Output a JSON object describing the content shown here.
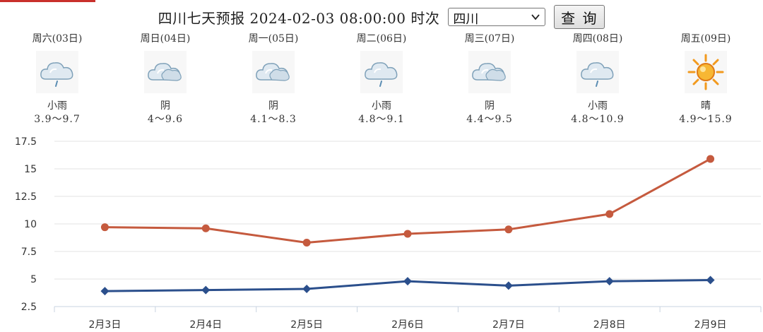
{
  "header": {
    "title": "四川七天预报 2024-02-03 08:00:00 时次",
    "region_select": {
      "selected": "四川"
    },
    "query_button": "查 询"
  },
  "forecast": {
    "days": [
      {
        "label": "周六(03日)",
        "icon": "cloud-rain-icon",
        "condition": "小雨",
        "range": "3.9～9.7"
      },
      {
        "label": "周日(04日)",
        "icon": "cloud-overcast-icon",
        "condition": "阴",
        "range": "4～9.6"
      },
      {
        "label": "周一(05日)",
        "icon": "cloud-overcast-icon",
        "condition": "阴",
        "range": "4.1～8.3"
      },
      {
        "label": "周二(06日)",
        "icon": "cloud-rain-icon",
        "condition": "小雨",
        "range": "4.8～9.1"
      },
      {
        "label": "周三(07日)",
        "icon": "cloud-overcast-icon",
        "condition": "阴",
        "range": "4.4～9.5"
      },
      {
        "label": "周四(08日)",
        "icon": "cloud-rain-icon",
        "condition": "小雨",
        "range": "4.8～10.9"
      },
      {
        "label": "周五(09日)",
        "icon": "sun-icon",
        "condition": "晴",
        "range": "4.9～15.9"
      }
    ]
  },
  "chart_data": {
    "type": "line",
    "categories": [
      "2月3日",
      "2月4日",
      "2月5日",
      "2月6日",
      "2月7日",
      "2月8日",
      "2月9日"
    ],
    "series": [
      {
        "values": [
          9.7,
          9.6,
          8.3,
          9.1,
          9.5,
          10.9,
          15.9
        ],
        "color": "#c55a3e",
        "marker": "circle"
      },
      {
        "values": [
          3.9,
          4.0,
          4.1,
          4.8,
          4.4,
          4.8,
          4.9
        ],
        "color": "#2b4f8c",
        "marker": "diamond"
      }
    ],
    "yticks": [
      "2.5",
      "5",
      "7.5",
      "10",
      "12.5",
      "15",
      "17.5"
    ],
    "ylim": [
      2.5,
      17.5
    ],
    "grid": "horizontal",
    "legend": "none"
  }
}
